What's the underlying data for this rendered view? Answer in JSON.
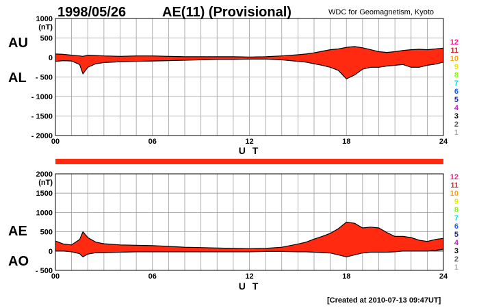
{
  "header": {
    "date": "1998/05/26",
    "title": "AE(11) (Provisional)",
    "source": "WDC for Geomagnetism, Kyoto"
  },
  "footer": {
    "created": "[Created at 2010-07-13 09:47UT]"
  },
  "colors": {
    "fill": "#ff2a10",
    "grid": "#9a9a9a",
    "bar": "#ff2a10"
  },
  "legend": [
    {
      "label": "12",
      "color": "#ff1493"
    },
    {
      "label": "11",
      "color": "#e8202a"
    },
    {
      "label": "10",
      "color": "#ffa500"
    },
    {
      "label": "9",
      "color": "#e8e800"
    },
    {
      "label": "8",
      "color": "#80ff00"
    },
    {
      "label": "7",
      "color": "#00e0e0"
    },
    {
      "label": "6",
      "color": "#1e60ff"
    },
    {
      "label": "5",
      "color": "#2020a0"
    },
    {
      "label": "4",
      "color": "#c020c0"
    },
    {
      "label": "3",
      "color": "#000000"
    },
    {
      "label": "2",
      "color": "#555555"
    },
    {
      "label": "1",
      "color": "#b0b0b0"
    }
  ],
  "chart_data": [
    {
      "type": "area",
      "panel": "top",
      "unit_label": "(nT)",
      "xlabel": "U T",
      "side_labels": {
        "upper": "AU",
        "lower": "AL"
      },
      "x_ticks": [
        "00",
        "06",
        "12",
        "18",
        "24"
      ],
      "y_ticks": [
        "1000",
        "500",
        "0",
        "- 500",
        "- 1000",
        "- 1500",
        "- 2000"
      ],
      "y_tick_values": [
        1000,
        500,
        0,
        -500,
        -1000,
        -1500,
        -2000
      ],
      "ylim": [
        -2000,
        1000
      ],
      "xlim": [
        0,
        24
      ],
      "grid": true,
      "x": [
        0,
        0.5,
        1,
        1.5,
        1.7,
        2,
        2.5,
        3,
        4,
        5,
        6,
        7,
        8,
        9,
        10,
        11,
        12,
        13,
        14,
        15,
        15.5,
        16,
        16.5,
        17,
        17.5,
        18,
        18.5,
        19,
        19.5,
        20,
        20.5,
        21,
        21.5,
        22,
        22.5,
        23,
        23.5,
        24
      ],
      "series": [
        {
          "name": "AU",
          "values": [
            90,
            80,
            60,
            40,
            30,
            60,
            50,
            40,
            30,
            40,
            40,
            30,
            20,
            20,
            20,
            20,
            10,
            20,
            40,
            70,
            90,
            120,
            160,
            200,
            220,
            260,
            280,
            250,
            200,
            150,
            130,
            150,
            180,
            200,
            210,
            200,
            220,
            240
          ]
        },
        {
          "name": "AL",
          "values": [
            -100,
            -80,
            -90,
            -180,
            -420,
            -250,
            -160,
            -130,
            -110,
            -100,
            -90,
            -80,
            -70,
            -60,
            -50,
            -50,
            -40,
            -40,
            -60,
            -100,
            -120,
            -160,
            -200,
            -250,
            -330,
            -550,
            -450,
            -300,
            -250,
            -250,
            -220,
            -200,
            -180,
            -250,
            -250,
            -200,
            -170,
            -120
          ]
        }
      ]
    },
    {
      "type": "area",
      "panel": "bottom",
      "unit_label": "(nT)",
      "xlabel": "U T",
      "side_labels": {
        "upper": "AE",
        "lower": "AO"
      },
      "x_ticks": [
        "00",
        "06",
        "12",
        "18",
        "24"
      ],
      "y_ticks": [
        "2000",
        "1500",
        "1000",
        "500",
        "0",
        "- 500"
      ],
      "y_tick_values": [
        2000,
        1500,
        1000,
        500,
        0,
        -500
      ],
      "ylim": [
        -500,
        2000
      ],
      "xlim": [
        0,
        24
      ],
      "grid": true,
      "x": [
        0,
        0.5,
        1,
        1.5,
        1.7,
        2,
        2.5,
        3,
        4,
        5,
        6,
        7,
        8,
        9,
        10,
        11,
        12,
        13,
        14,
        15,
        15.5,
        16,
        16.5,
        17,
        17.5,
        18,
        18.5,
        19,
        19.5,
        20,
        20.5,
        21,
        21.5,
        22,
        22.5,
        23,
        23.5,
        24
      ],
      "series": [
        {
          "name": "AE",
          "values": [
            260,
            180,
            160,
            300,
            500,
            350,
            230,
            190,
            160,
            150,
            140,
            120,
            100,
            90,
            80,
            70,
            60,
            70,
            100,
            180,
            230,
            310,
            380,
            460,
            580,
            750,
            720,
            600,
            620,
            600,
            480,
            380,
            380,
            350,
            280,
            250,
            300,
            330
          ]
        },
        {
          "name": "AO",
          "values": [
            0,
            0,
            -20,
            -70,
            -150,
            -80,
            -40,
            -40,
            -30,
            -20,
            -20,
            -20,
            -20,
            -20,
            -20,
            -20,
            -20,
            -10,
            -10,
            -20,
            -20,
            -30,
            -40,
            -50,
            -100,
            -150,
            -100,
            -50,
            -30,
            -30,
            -30,
            -20,
            0,
            0,
            0,
            0,
            20,
            50
          ]
        }
      ]
    }
  ]
}
